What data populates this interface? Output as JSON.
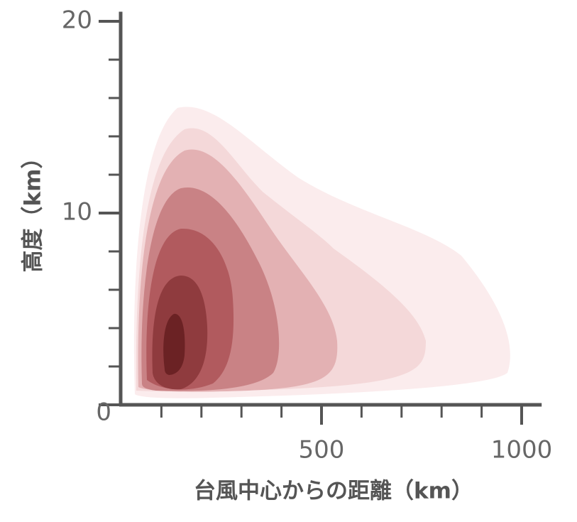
{
  "chart_data": {
    "type": "contour",
    "xlabel": "台風中心からの距離（km）",
    "ylabel": "高度（km）",
    "xlim": [
      0,
      1050
    ],
    "xticks": [
      500,
      1000
    ],
    "xminor_ticks": [
      100,
      200,
      300,
      400,
      600,
      700,
      800,
      900
    ],
    "ylim": [
      0,
      20.5
    ],
    "yticks": [
      0,
      10,
      20
    ],
    "yminor_ticks": [
      2,
      4,
      6,
      8,
      12,
      14,
      16,
      18
    ],
    "color": "#555555"
  }
}
